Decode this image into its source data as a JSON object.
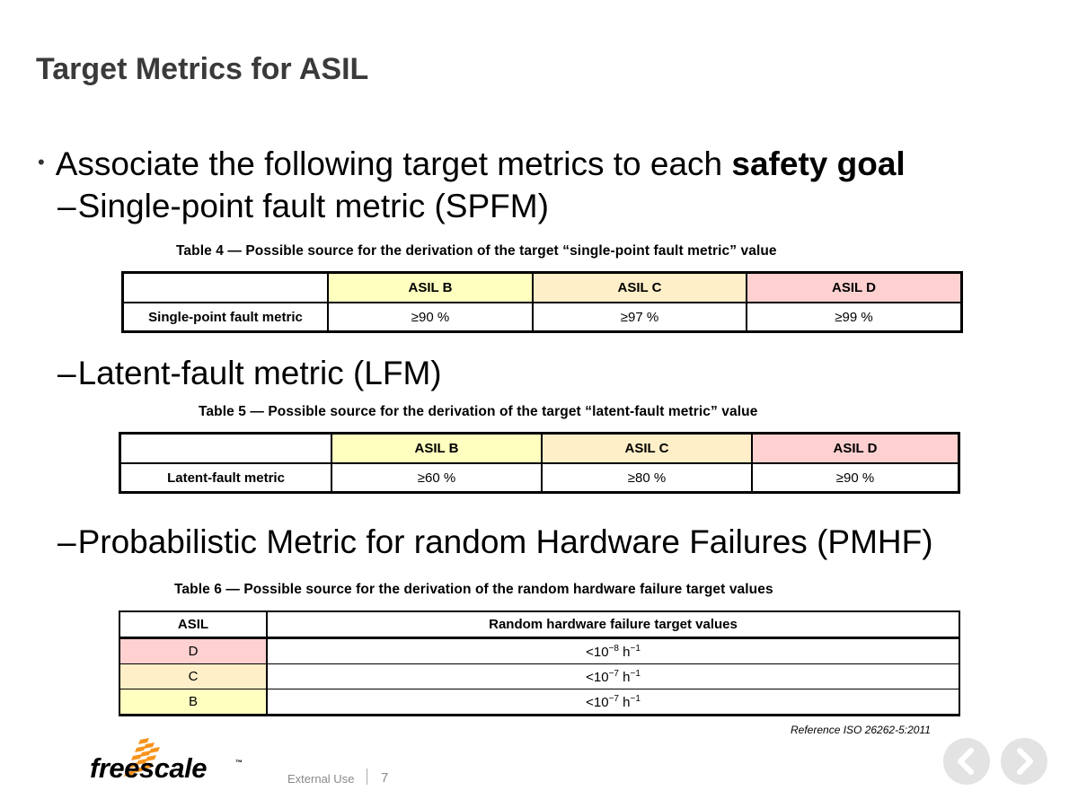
{
  "title": "Target Metrics for ASIL",
  "bullet": {
    "text": "Associate the following target metrics to each ",
    "bold": "safety goal"
  },
  "sub1": "Single-point fault metric (SPFM)",
  "sub2": "Latent-fault metric (LFM)",
  "sub3": "Probabilistic Metric for random Hardware Failures (PMHF)",
  "dash": "–",
  "table4": {
    "caption": "Table 4 — Possible source for the derivation of the target “single-point fault metric” value",
    "headers": [
      "",
      "ASIL B",
      "ASIL C",
      "ASIL D"
    ],
    "row_label": "Single-point fault metric",
    "values": [
      "≥90 %",
      "≥97 %",
      "≥99 %"
    ]
  },
  "table5": {
    "caption": "Table 5 — Possible source for the derivation of the target “latent-fault metric” value",
    "headers": [
      "",
      "ASIL B",
      "ASIL C",
      "ASIL D"
    ],
    "row_label": "Latent-fault metric",
    "values": [
      "≥60 %",
      "≥80 %",
      "≥90 %"
    ]
  },
  "table6": {
    "caption": "Table 6 — Possible source for the derivation of the random hardware failure target values",
    "headers": [
      "ASIL",
      "Random hardware failure target values"
    ],
    "rows": [
      {
        "asil": "D",
        "base": "<10",
        "exp": "−8",
        "unit": " h",
        "unit_exp": "−1"
      },
      {
        "asil": "C",
        "base": "<10",
        "exp": "−7",
        "unit": " h",
        "unit_exp": "−1"
      },
      {
        "asil": "B",
        "base": "<10",
        "exp": "−7",
        "unit": " h",
        "unit_exp": "−1"
      }
    ]
  },
  "colors": {
    "asil_b": "#ffffc0",
    "asil_c": "#ffefc8",
    "asil_d": "#ffd0d0",
    "logo_orange": "#f7941d",
    "title": "#3a3a3a"
  },
  "reference": "Reference ISO 26262-5:2011",
  "footer": {
    "brand": "freescale",
    "trademark": "™",
    "classification": "External Use",
    "page_number": "7"
  },
  "nav": {
    "prev_icon": "chevron-left-icon",
    "next_icon": "chevron-right-icon"
  }
}
